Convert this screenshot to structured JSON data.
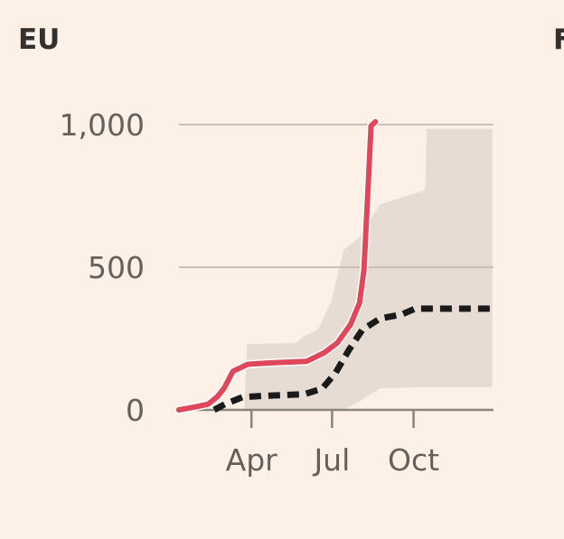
{
  "panels": {
    "title": "EU",
    "next_title": "F"
  },
  "chart_data": {
    "type": "line",
    "title": "EU",
    "xlabel": "",
    "ylabel": "",
    "x_unit": "day of year",
    "xlim": [
      0,
      365
    ],
    "ylim": [
      0,
      1000
    ],
    "grid": true,
    "yticks": [
      {
        "value": 0,
        "label": "0"
      },
      {
        "value": 500,
        "label": "500"
      },
      {
        "value": 1000,
        "label": "1,000"
      }
    ],
    "xticks": [
      {
        "value": 90,
        "label": "Apr"
      },
      {
        "value": 181,
        "label": "Jul"
      },
      {
        "value": 273,
        "label": "Oct"
      }
    ],
    "colors": {
      "actual": "#e0475a",
      "expected": "#1a1a1a",
      "band": "#e6dcd3",
      "grid": "#c9c0b8",
      "axis": "#8a847f"
    },
    "series": [
      {
        "name": "actual",
        "style": "solid",
        "x": [
          8,
          26,
          41,
          51,
          59,
          69,
          86,
          112,
          152,
          172,
          187,
          202,
          212,
          217,
          222,
          225,
          230
        ],
        "y": [
          0,
          10,
          20,
          45,
          75,
          135,
          160,
          165,
          170,
          200,
          235,
          300,
          375,
          490,
          800,
          995,
          1010
        ]
      },
      {
        "name": "expected",
        "style": "dashed",
        "x": [
          48,
          60,
          80,
          110,
          150,
          170,
          185,
          200,
          215,
          235,
          260,
          275,
          362
        ],
        "y": [
          0,
          20,
          45,
          50,
          55,
          75,
          130,
          210,
          280,
          320,
          335,
          355,
          355
        ]
      }
    ],
    "band": {
      "x": [
        48,
        82,
        85,
        140,
        150,
        165,
        180,
        194,
        212,
        235,
        286,
        288,
        362
      ],
      "upper": [
        0,
        0,
        230,
        235,
        260,
        280,
        380,
        560,
        605,
        720,
        770,
        985,
        985
      ],
      "lower": [
        0,
        0,
        0,
        0,
        0,
        0,
        0,
        0,
        30,
        75,
        80,
        80,
        80
      ]
    }
  }
}
